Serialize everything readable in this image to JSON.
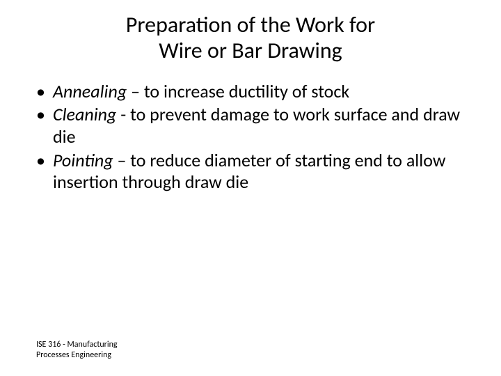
{
  "title": {
    "line1": "Preparation of the Work for",
    "line2": "Wire or Bar Drawing"
  },
  "bullets": [
    {
      "term": "Annealing",
      "sep": " – ",
      "desc": "to increase ductility of stock"
    },
    {
      "term": "Cleaning",
      "sep": " - ",
      "desc": "to prevent damage to work surface and draw die"
    },
    {
      "term": "Pointing",
      "sep": " – ",
      "desc": "to reduce diameter of starting end to allow insertion through draw die"
    }
  ],
  "footer": {
    "line1": "ISE 316  -  Manufacturing",
    "line2": "Processes Engineering"
  },
  "colors": {
    "background": "#ffffff",
    "text": "#000000"
  },
  "typography": {
    "title_fontsize": 32,
    "body_fontsize": 26,
    "footer_fontsize": 12,
    "font_family": "Calibri"
  }
}
